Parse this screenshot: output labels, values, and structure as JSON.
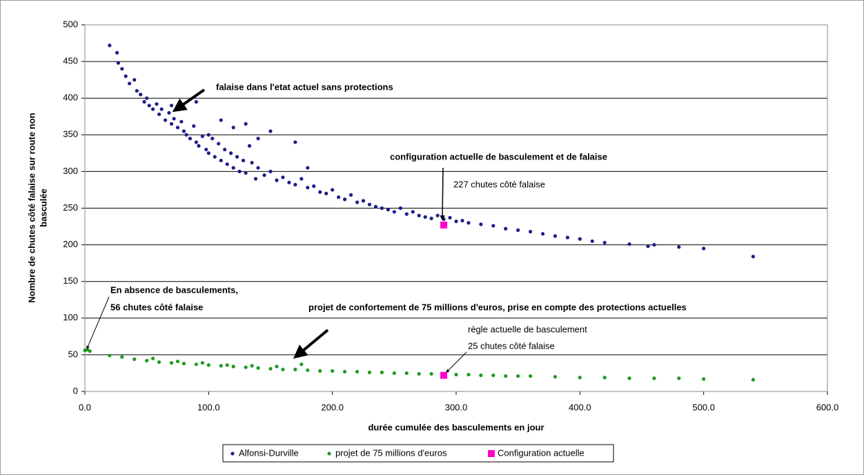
{
  "chart_data": {
    "type": "scatter",
    "xlabel": "durée cumulée des basculements en jour",
    "ylabel": [
      "Nombre de chutes côté falaise sur route non",
      "basculée"
    ],
    "xlim": [
      0,
      600
    ],
    "ylim": [
      0,
      500
    ],
    "xticks": [
      {
        "value": 0,
        "label": "0.0"
      },
      {
        "value": 100,
        "label": "100.0"
      },
      {
        "value": 200,
        "label": "200.0"
      },
      {
        "value": 300,
        "label": "300.0"
      },
      {
        "value": 400,
        "label": "400.0"
      },
      {
        "value": 500,
        "label": "500.0"
      },
      {
        "value": 600,
        "label": "600.0"
      }
    ],
    "yticks": [
      0,
      50,
      100,
      150,
      200,
      250,
      300,
      350,
      400,
      450,
      500
    ],
    "grid": true,
    "legend": "bottom",
    "annotations": [
      "falaise dans l'etat actuel sans protections",
      "configuration actuelle de basculement et de falaise",
      "227 chutes côté falaise",
      "En absence de basculements,",
      "56 chutes côté falaise",
      "projet de confortement de 75 millions d'euros, prise en compte des protections actuelles",
      "règle actuelle de basculement",
      "25 chutes côté falaise"
    ],
    "series": [
      {
        "name": "Alfonsi-Durville",
        "color": "#1c1c8a",
        "marker": "circle",
        "x": [
          20,
          26,
          27,
          30,
          33,
          36,
          40,
          42,
          45,
          48,
          50,
          52,
          55,
          58,
          60,
          62,
          65,
          68,
          70,
          72,
          75,
          78,
          80,
          82,
          85,
          88,
          90,
          92,
          95,
          98,
          100,
          103,
          105,
          108,
          110,
          113,
          115,
          118,
          120,
          123,
          125,
          128,
          130,
          133,
          135,
          138,
          140,
          145,
          150,
          155,
          160,
          165,
          170,
          175,
          180,
          185,
          190,
          195,
          200,
          205,
          210,
          215,
          220,
          225,
          230,
          235,
          240,
          245,
          250,
          255,
          260,
          265,
          270,
          275,
          280,
          285,
          290,
          295,
          300,
          305,
          310,
          320,
          330,
          340,
          350,
          360,
          370,
          380,
          390,
          400,
          410,
          420,
          440,
          455,
          460,
          480,
          500,
          540,
          70,
          90,
          110,
          130,
          150,
          170,
          180,
          100,
          120,
          140
        ],
        "values": [
          472,
          462,
          448,
          440,
          430,
          420,
          425,
          410,
          405,
          395,
          400,
          390,
          385,
          392,
          378,
          385,
          370,
          380,
          365,
          372,
          360,
          368,
          355,
          350,
          345,
          362,
          340,
          335,
          348,
          330,
          325,
          345,
          320,
          338,
          315,
          330,
          310,
          325,
          305,
          320,
          300,
          315,
          298,
          335,
          312,
          290,
          305,
          295,
          300,
          288,
          292,
          285,
          282,
          290,
          278,
          280,
          272,
          270,
          275,
          265,
          262,
          268,
          258,
          260,
          255,
          252,
          250,
          248,
          245,
          250,
          242,
          245,
          240,
          238,
          236,
          240,
          235,
          237,
          232,
          233,
          230,
          228,
          226,
          222,
          220,
          218,
          215,
          212,
          210,
          208,
          205,
          203,
          201,
          198,
          200,
          197,
          195,
          184,
          390,
          395,
          370,
          365,
          355,
          340,
          305,
          350,
          360,
          345
        ]
      },
      {
        "name": "projet de 75 millions d'euros",
        "color": "#1e9a1e",
        "marker": "circle",
        "x": [
          0,
          2,
          4,
          20,
          30,
          40,
          50,
          60,
          70,
          80,
          90,
          100,
          110,
          120,
          130,
          140,
          150,
          160,
          170,
          180,
          190,
          200,
          210,
          220,
          230,
          240,
          250,
          260,
          270,
          280,
          290,
          300,
          310,
          320,
          330,
          340,
          350,
          360,
          380,
          400,
          420,
          440,
          460,
          480,
          500,
          540,
          55,
          75,
          95,
          115,
          135,
          155,
          175
        ],
        "values": [
          56,
          57,
          55,
          49,
          47,
          44,
          42,
          40,
          39,
          38,
          37,
          36,
          35,
          34,
          33,
          32,
          31,
          30,
          30,
          29,
          28,
          28,
          27,
          27,
          26,
          26,
          25,
          25,
          24,
          24,
          23,
          23,
          23,
          22,
          22,
          21,
          21,
          21,
          20,
          19,
          19,
          18,
          18,
          18,
          17,
          16,
          45,
          41,
          39,
          36,
          35,
          34,
          37
        ]
      },
      {
        "name": "Configuration actuelle",
        "color": "#ff00cc",
        "marker": "square",
        "x": [
          290,
          290
        ],
        "values": [
          227,
          22
        ]
      }
    ]
  }
}
